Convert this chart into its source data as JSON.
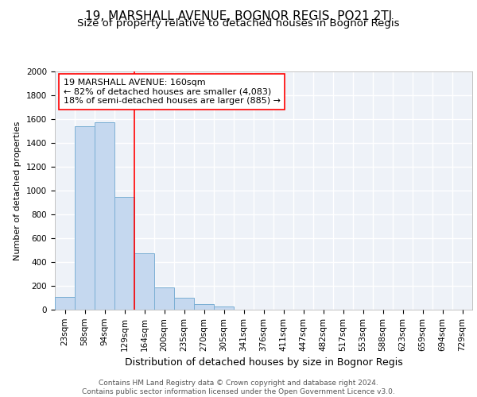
{
  "title": "19, MARSHALL AVENUE, BOGNOR REGIS, PO21 2TJ",
  "subtitle": "Size of property relative to detached houses in Bognor Regis",
  "xlabel": "Distribution of detached houses by size in Bognor Regis",
  "ylabel": "Number of detached properties",
  "bar_labels": [
    "23sqm",
    "58sqm",
    "94sqm",
    "129sqm",
    "164sqm",
    "200sqm",
    "235sqm",
    "270sqm",
    "305sqm",
    "341sqm",
    "376sqm",
    "411sqm",
    "447sqm",
    "482sqm",
    "517sqm",
    "553sqm",
    "588sqm",
    "623sqm",
    "659sqm",
    "694sqm",
    "729sqm"
  ],
  "bar_values": [
    110,
    1540,
    1575,
    950,
    475,
    185,
    97,
    45,
    30,
    0,
    0,
    0,
    0,
    0,
    0,
    0,
    0,
    0,
    0,
    0,
    0
  ],
  "bar_color": "#c5d8ef",
  "bar_edge_color": "#7bafd4",
  "ylim": [
    0,
    2000
  ],
  "yticks": [
    0,
    200,
    400,
    600,
    800,
    1000,
    1200,
    1400,
    1600,
    1800,
    2000
  ],
  "property_label": "19 MARSHALL AVENUE: 160sqm",
  "annotation_line1": "← 82% of detached houses are smaller (4,083)",
  "annotation_line2": "18% of semi-detached houses are larger (885) →",
  "vline_x_index": 3.5,
  "footer_line1": "Contains HM Land Registry data © Crown copyright and database right 2024.",
  "footer_line2": "Contains public sector information licensed under the Open Government Licence v3.0.",
  "background_color": "#eef2f8",
  "grid_color": "#ffffff",
  "title_fontsize": 11,
  "subtitle_fontsize": 9.5,
  "xlabel_fontsize": 9,
  "ylabel_fontsize": 8,
  "tick_fontsize": 7.5,
  "annotation_fontsize": 8,
  "footer_fontsize": 6.5
}
